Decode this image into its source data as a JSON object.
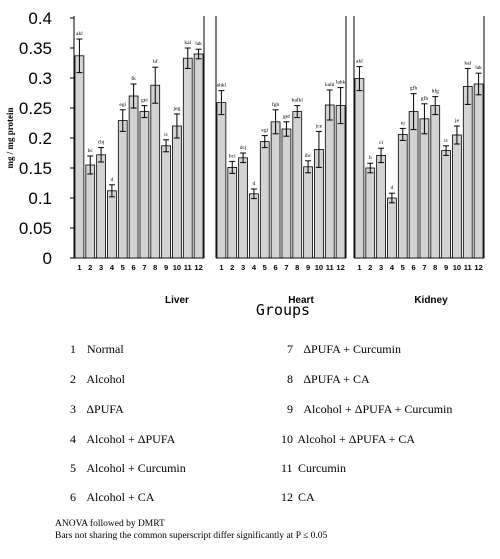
{
  "chart_data": {
    "type": "bar",
    "ylabel": "mg / mg protein",
    "xlabel": "Groups",
    "ylim": [
      0,
      0.4
    ],
    "yticks": [
      "0",
      "0.05",
      "0.1",
      "0.15",
      "0.2",
      "0.25",
      "0.3",
      "0.35",
      "0.4"
    ],
    "categories": [
      "1",
      "2",
      "3",
      "4",
      "5",
      "6",
      "7",
      "8",
      "9",
      "10",
      "11",
      "12"
    ],
    "bar_color": "#d3d3d3",
    "panels": [
      {
        "name": "Liver",
        "values": [
          0.337,
          0.155,
          0.172,
          0.112,
          0.229,
          0.27,
          0.244,
          0.288,
          0.187,
          0.22,
          0.333,
          0.34
        ],
        "errors": [
          0.028,
          0.015,
          0.012,
          0.01,
          0.018,
          0.02,
          0.01,
          0.03,
          0.01,
          0.02,
          0.017,
          0.008
        ],
        "labels": [
          "akl",
          "bc",
          "cbj",
          "d",
          "egi",
          "fk",
          "gei",
          "hf",
          "ic",
          "jeg",
          "kal",
          "lak"
        ]
      },
      {
        "name": "Heart",
        "values": [
          0.259,
          0.151,
          0.167,
          0.107,
          0.194,
          0.227,
          0.215,
          0.244,
          0.152,
          0.181,
          0.255,
          0.254
        ],
        "errors": [
          0.02,
          0.01,
          0.008,
          0.008,
          0.01,
          0.02,
          0.012,
          0.01,
          0.01,
          0.03,
          0.025,
          0.03
        ],
        "labels": [
          "ahkl",
          "bci",
          "dcj",
          "d",
          "egi",
          "fgh",
          "gef",
          "hafkl",
          "ibc",
          "jce",
          "kahl",
          "lahk"
        ]
      },
      {
        "name": "Kidney",
        "values": [
          0.299,
          0.15,
          0.171,
          0.1,
          0.206,
          0.244,
          0.232,
          0.254,
          0.179,
          0.205,
          0.286,
          0.29
        ],
        "errors": [
          0.02,
          0.008,
          0.012,
          0.008,
          0.01,
          0.03,
          0.025,
          0.015,
          0.008,
          0.015,
          0.03,
          0.018
        ],
        "labels": [
          "akl",
          "b",
          "ci",
          "d",
          "ej",
          "gfh",
          "gfh",
          "hfg",
          "ic",
          "je",
          "kal",
          "lak"
        ]
      }
    ]
  },
  "legend": {
    "left": [
      {
        "num": "1",
        "text": "Normal"
      },
      {
        "num": "2",
        "text": "Alcohol"
      },
      {
        "num": "3",
        "text": "ΔPUFA"
      },
      {
        "num": "4",
        "text": "Alcohol + ΔPUFA"
      },
      {
        "num": "5",
        "text": "Alcohol + Curcumin"
      },
      {
        "num": "6",
        "text": "Alcohol + CA"
      }
    ],
    "right": [
      {
        "num": "7",
        "text": "ΔPUFA + Curcumin"
      },
      {
        "num": "8",
        "text": "ΔPUFA + CA"
      },
      {
        "num": "9",
        "text": "Alcohol + ΔPUFA + Curcumin"
      },
      {
        "num": "10",
        "text": "Alcohol + ΔPUFA + CA"
      },
      {
        "num": "11",
        "text": "Curcumin"
      },
      {
        "num": "12",
        "text": "CA"
      }
    ]
  },
  "notes": {
    "line1": "ANOVA followed by DMRT",
    "line2": "Bars not sharing the common superscript differ significantly at P ≤ 0.05"
  }
}
